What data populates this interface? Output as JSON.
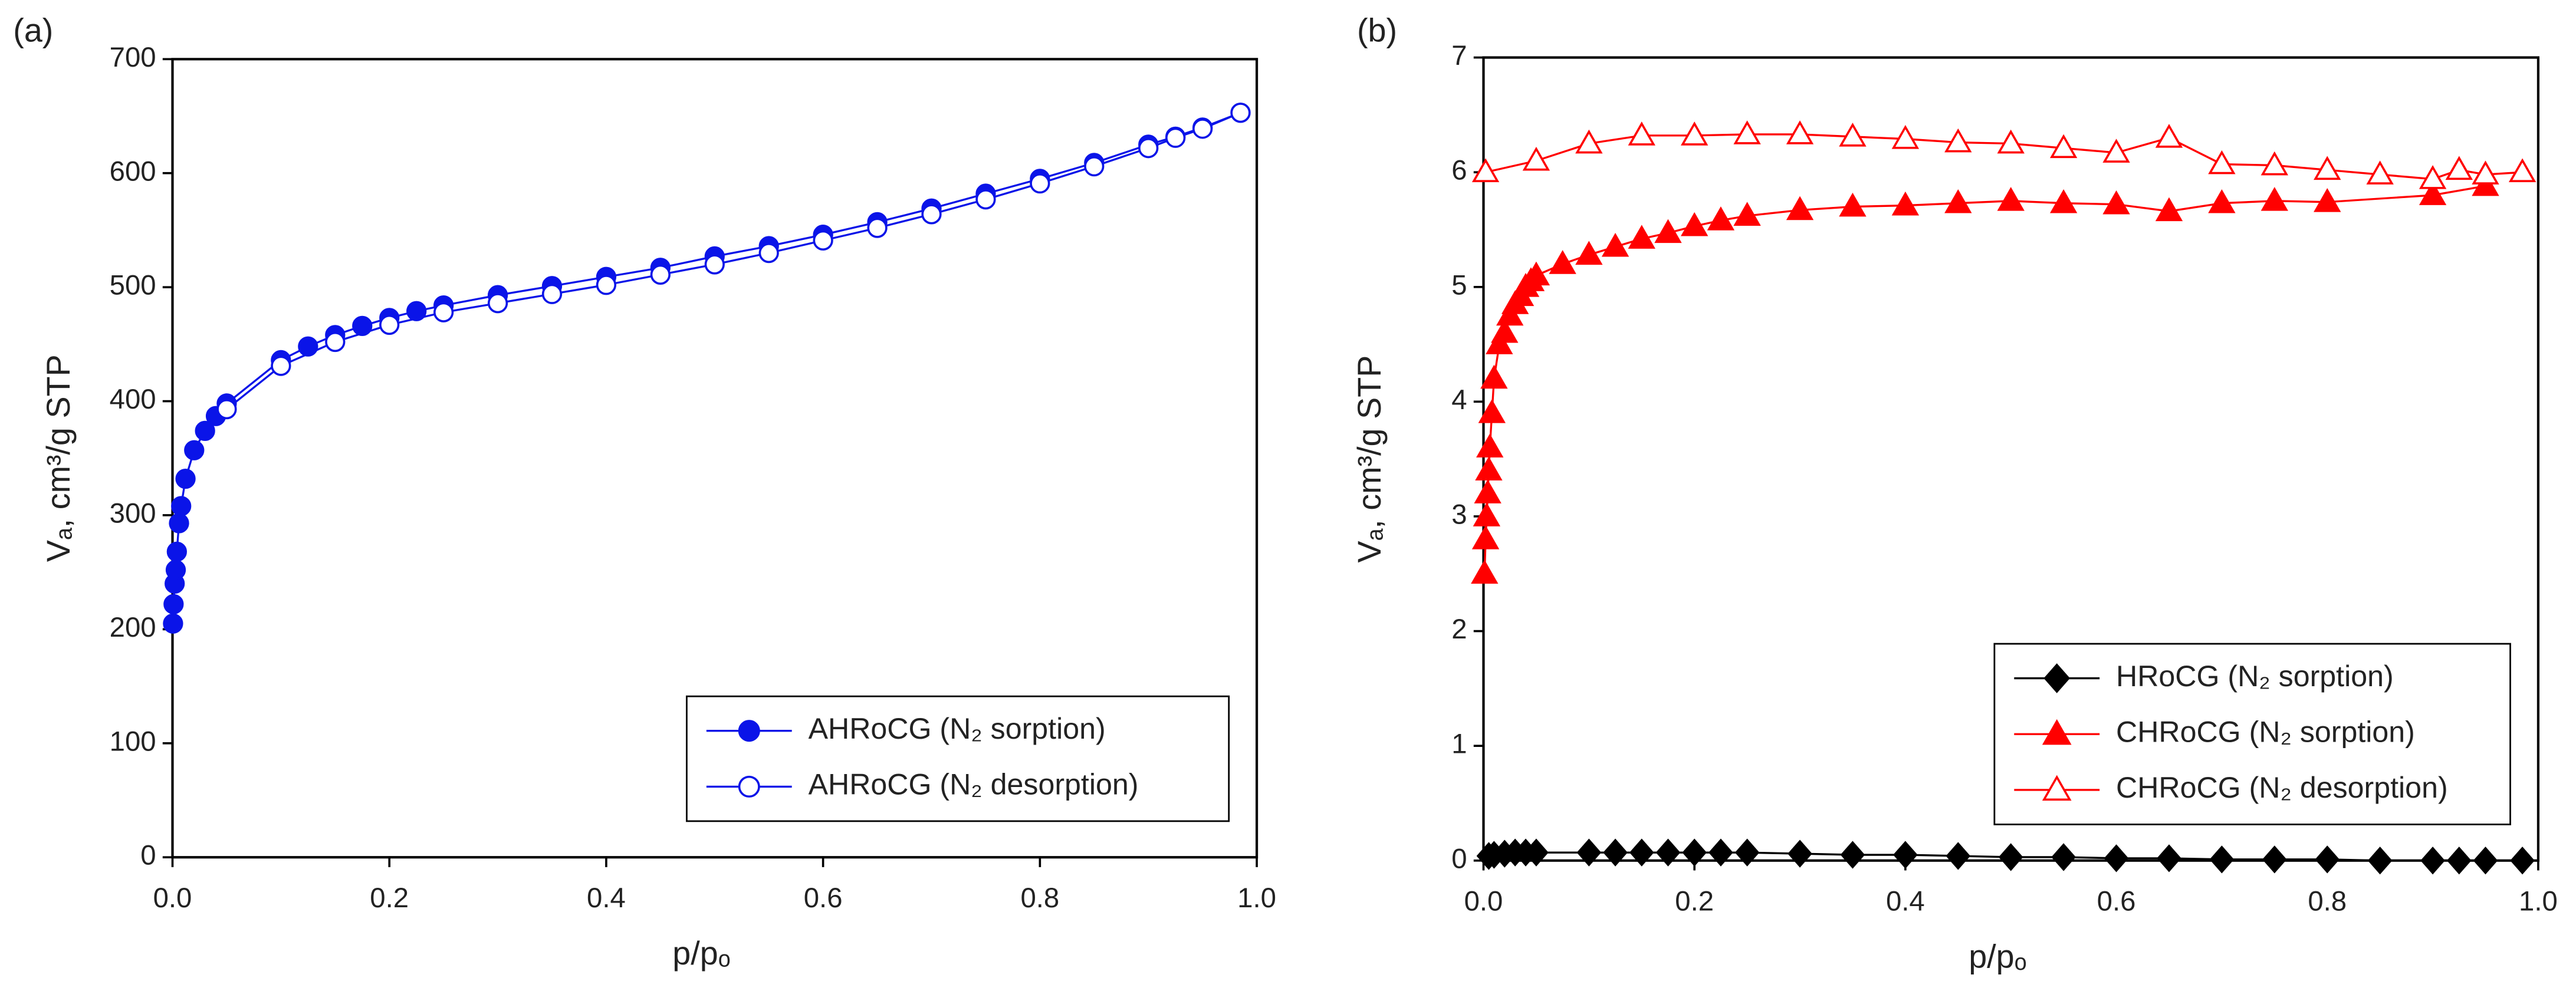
{
  "chart_data": [
    {
      "type": "line",
      "panel_label": "(a)",
      "x_label": "p/pₒ",
      "y_label": "Vₐ, cm³/g STP",
      "xlim": [
        0,
        1
      ],
      "xticks": [
        {
          "value": 0,
          "label": "0.0"
        },
        0.2,
        0.4,
        0.6,
        0.8,
        {
          "value": 1,
          "label": "1.0"
        }
      ],
      "ylim": [
        0,
        700
      ],
      "yticks": [
        0,
        100,
        200,
        300,
        400,
        500,
        600,
        700
      ],
      "legend": "lower right",
      "series": [
        {
          "name": "AHRoCG (N₂ sorption)",
          "color": "#0a14e8",
          "marker": "circle",
          "filled": true,
          "x": [
            0.0005,
            0.001,
            0.002,
            0.003,
            0.004,
            0.006,
            0.008,
            0.012,
            0.02,
            0.03,
            0.04,
            0.05,
            0.1,
            0.125,
            0.15,
            0.175,
            0.2,
            0.225,
            0.25,
            0.3,
            0.35,
            0.4,
            0.45,
            0.5,
            0.55,
            0.6,
            0.65,
            0.7,
            0.75,
            0.8,
            0.85,
            0.9,
            0.925,
            0.95,
            0.985
          ],
          "values": [
            205,
            222,
            240,
            252,
            268,
            293,
            308,
            332,
            357,
            374,
            387,
            398,
            436,
            448,
            458,
            466,
            473,
            479,
            484,
            493,
            501,
            509,
            517,
            527,
            536,
            546,
            557,
            569,
            582,
            595,
            609,
            625,
            632,
            640,
            653
          ]
        },
        {
          "name": "AHRoCG (N₂ desorption)",
          "color": "#0a14e8",
          "marker": "circle",
          "filled": false,
          "x": [
            0.05,
            0.1,
            0.15,
            0.2,
            0.25,
            0.3,
            0.35,
            0.4,
            0.45,
            0.5,
            0.55,
            0.6,
            0.65,
            0.7,
            0.75,
            0.8,
            0.85,
            0.9,
            0.925,
            0.95,
            0.985
          ],
          "values": [
            393,
            431,
            452,
            467,
            478,
            486,
            494,
            502,
            511,
            520,
            530,
            541,
            552,
            564,
            577,
            591,
            606,
            622,
            631,
            639,
            653
          ]
        }
      ]
    },
    {
      "type": "line",
      "panel_label": "(b)",
      "x_label": "p/pₒ",
      "y_label": "Vₐ,  cm³/g STP",
      "xlim": [
        0,
        1
      ],
      "xticks": [
        {
          "value": 0,
          "label": "0.0"
        },
        0.2,
        0.4,
        0.6,
        0.8,
        {
          "value": 1,
          "label": "1.0"
        }
      ],
      "ylim": [
        0,
        7
      ],
      "yticks": [
        0,
        1,
        2,
        3,
        4,
        5,
        6,
        7
      ],
      "legend": "lower right",
      "series": [
        {
          "name": "HRoCG (N₂ sorption)",
          "color": "#000000",
          "marker": "diamond",
          "filled": true,
          "x": [
            0.005,
            0.01,
            0.02,
            0.03,
            0.04,
            0.05,
            0.1,
            0.125,
            0.15,
            0.175,
            0.2,
            0.225,
            0.25,
            0.3,
            0.35,
            0.4,
            0.45,
            0.5,
            0.55,
            0.6,
            0.65,
            0.7,
            0.75,
            0.8,
            0.85,
            0.9,
            0.925,
            0.95,
            0.985
          ],
          "values": [
            0.04,
            0.05,
            0.06,
            0.07,
            0.07,
            0.07,
            0.07,
            0.07,
            0.07,
            0.07,
            0.07,
            0.07,
            0.07,
            0.06,
            0.05,
            0.05,
            0.04,
            0.03,
            0.03,
            0.02,
            0.02,
            0.01,
            0.01,
            0.01,
            0,
            0,
            0,
            0,
            0
          ]
        },
        {
          "name": "CHRoCG (N₂ sorption)",
          "color": "#ff0000",
          "marker": "triangle",
          "filled": true,
          "x": [
            0.001,
            0.002,
            0.003,
            0.004,
            0.005,
            0.006,
            0.008,
            0.01,
            0.015,
            0.02,
            0.025,
            0.03,
            0.035,
            0.04,
            0.045,
            0.05,
            0.075,
            0.1,
            0.125,
            0.15,
            0.175,
            0.2,
            0.225,
            0.25,
            0.3,
            0.35,
            0.4,
            0.45,
            0.5,
            0.55,
            0.6,
            0.65,
            0.7,
            0.75,
            0.8,
            0.9,
            0.95
          ],
          "values": [
            2.5,
            2.8,
            3.0,
            3.2,
            3.4,
            3.6,
            3.9,
            4.2,
            4.5,
            4.6,
            4.75,
            4.85,
            4.92,
            5.0,
            5.05,
            5.1,
            5.2,
            5.28,
            5.35,
            5.42,
            5.47,
            5.53,
            5.58,
            5.62,
            5.67,
            5.7,
            5.71,
            5.73,
            5.75,
            5.73,
            5.72,
            5.66,
            5.73,
            5.75,
            5.74,
            5.8,
            5.88
          ]
        },
        {
          "name": "CHRoCG (N₂ desorption)",
          "color": "#ff0000",
          "marker": "triangle",
          "filled": false,
          "x": [
            0.002,
            0.05,
            0.1,
            0.15,
            0.2,
            0.25,
            0.3,
            0.35,
            0.4,
            0.45,
            0.5,
            0.55,
            0.6,
            0.65,
            0.7,
            0.75,
            0.8,
            0.85,
            0.9,
            0.925,
            0.95,
            0.985
          ],
          "values": [
            6.0,
            6.1,
            6.25,
            6.32,
            6.32,
            6.33,
            6.33,
            6.31,
            6.29,
            6.26,
            6.25,
            6.21,
            6.17,
            6.3,
            6.07,
            6.06,
            6.02,
            5.98,
            5.94,
            6.02,
            5.98,
            6.0
          ]
        }
      ]
    }
  ]
}
